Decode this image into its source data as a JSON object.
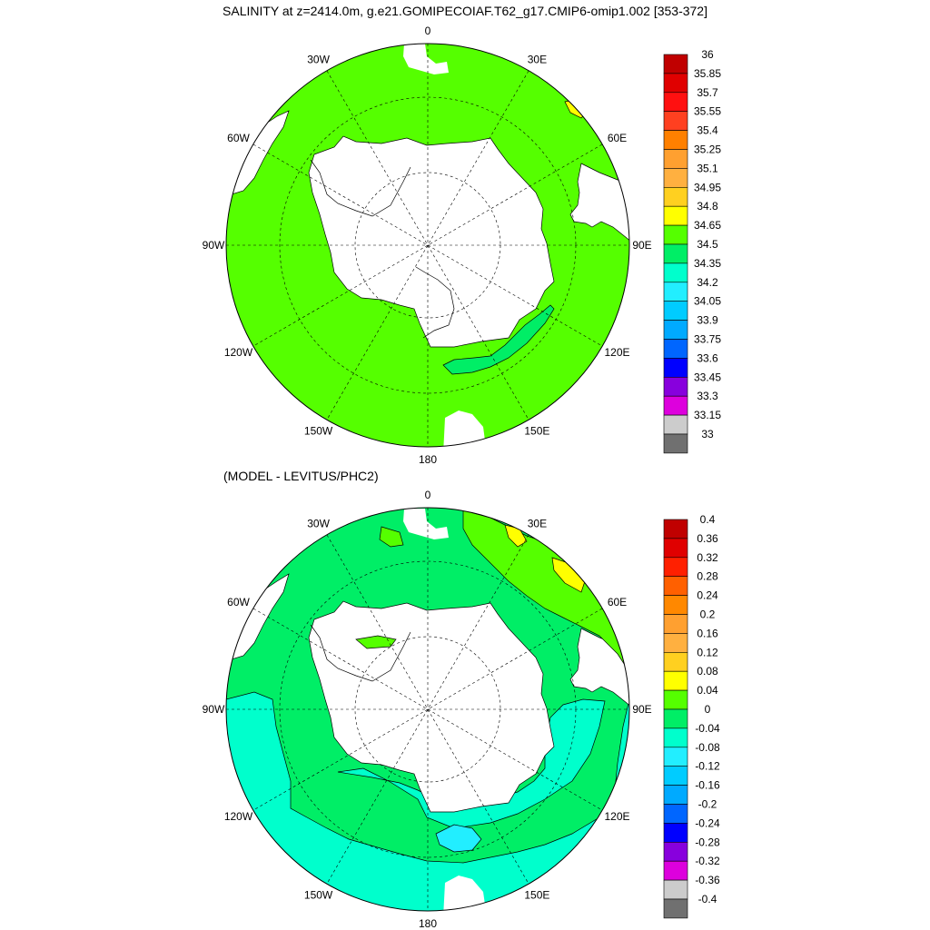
{
  "title": "SALINITY at z=2414.0m, g.e21.GOMIPECOIAF.T62_g17.CMIP6-omip1.002 [353-372]",
  "subtitle": "(MODEL - LEVITUS/PHC2)",
  "longitude_labels": [
    "0",
    "30E",
    "60E",
    "90E",
    "120E",
    "150E",
    "180",
    "150W",
    "120W",
    "90W",
    "60W",
    "30W"
  ],
  "colors": {
    "land": "#ffffff",
    "coast": "#000000",
    "ocean_top": "#55ff00",
    "ocean_bottom": "#00ee66",
    "anomaly_negative": "#00ffcc",
    "anomaly_more_negative": "#22eeff"
  },
  "top_colorbar": {
    "labels": [
      "36",
      "35.85",
      "35.7",
      "35.55",
      "35.4",
      "35.25",
      "35.1",
      "34.95",
      "34.8",
      "34.65",
      "34.5",
      "34.35",
      "34.2",
      "34.05",
      "33.9",
      "33.75",
      "33.6",
      "33.45",
      "33.3",
      "33.15",
      "33"
    ],
    "colors": [
      "#c00000",
      "#e00000",
      "#ff1010",
      "#ff4020",
      "#ff8000",
      "#ffa030",
      "#ffb040",
      "#ffd020",
      "#ffff00",
      "#55ff00",
      "#00ee66",
      "#00ffcc",
      "#22eeff",
      "#00ccff",
      "#00aaff",
      "#0066ff",
      "#0000ff",
      "#8800dd",
      "#dd00dd",
      "#cccccc",
      "#707070"
    ]
  },
  "bottom_colorbar": {
    "labels": [
      "0.4",
      "0.36",
      "0.32",
      "0.28",
      "0.24",
      "0.2",
      "0.16",
      "0.12",
      "0.08",
      "0.04",
      "0",
      "-0.04",
      "-0.08",
      "-0.12",
      "-0.16",
      "-0.2",
      "-0.24",
      "-0.28",
      "-0.32",
      "-0.36",
      "-0.4"
    ],
    "colors": [
      "#c00000",
      "#e00000",
      "#ff2000",
      "#ff6000",
      "#ff8800",
      "#ffa030",
      "#ffb040",
      "#ffd020",
      "#ffff00",
      "#55ff00",
      "#00ee66",
      "#00ffcc",
      "#22eeff",
      "#00ccff",
      "#00aaff",
      "#0066ff",
      "#0000ff",
      "#8800dd",
      "#dd00dd",
      "#cccccc",
      "#707070"
    ]
  }
}
